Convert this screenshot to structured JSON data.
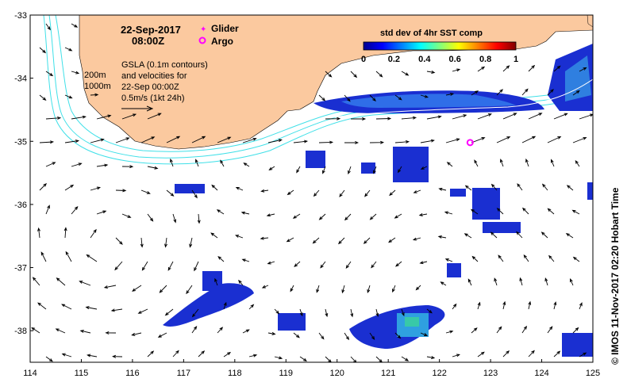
{
  "map": {
    "date": "22-Sep-2017",
    "time": "08:00Z",
    "legend_glider": "Glider",
    "legend_argo": "Argo",
    "gsla_line1": "GSLA (0.1m contours)",
    "gsla_line2": "and velocities for",
    "gsla_line3": "22-Sep 00:00Z",
    "gsla_line4": "0.5m/s (1kt 24h)",
    "isobath_200": "200m",
    "isobath_1000": "1000m",
    "colorbar_title": "std dev of 4hr SST comp",
    "colorbar_ticks": [
      "0",
      "0.2",
      "0.4",
      "0.6",
      "0.8",
      "1"
    ],
    "credit": "© IMOS 11-Nov-2017 02:20 Hobart Time",
    "x_ticks": [
      "114",
      "115",
      "116",
      "117",
      "118",
      "119",
      "120",
      "121",
      "122",
      "123",
      "124",
      "125"
    ],
    "y_ticks": [
      "-33",
      "-34",
      "-35",
      "-36",
      "-37",
      "-38"
    ],
    "extent": {
      "lon_min": 114,
      "lon_max": 125,
      "lat_min": -38.5,
      "lat_max": -33
    },
    "argo_float": {
      "lon": 122.6,
      "lat": -35.02
    },
    "colors": {
      "land": "#fbc99f",
      "isobath": "#40e0e8",
      "arrow": "#000000",
      "argo": "#ff00ff"
    }
  }
}
